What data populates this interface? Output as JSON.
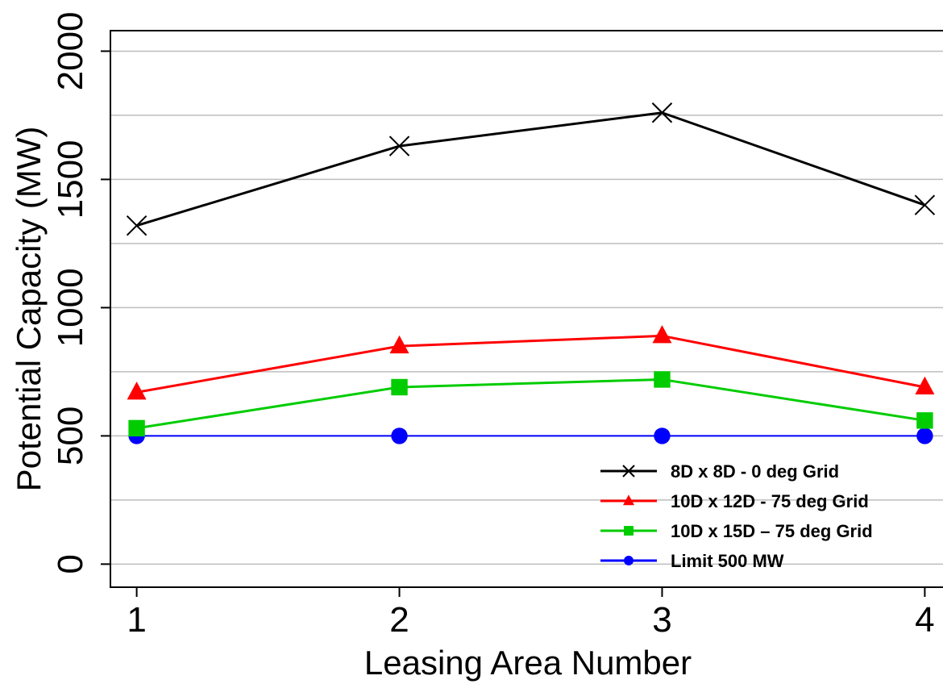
{
  "chart_data": {
    "type": "line",
    "xlabel": "Leasing Area Number",
    "ylabel": "Potential Capacity (MW)",
    "x": [
      1,
      2,
      3,
      4
    ],
    "xlim": [
      0.9,
      4.1
    ],
    "ylim": [
      -90,
      2080
    ],
    "x_ticks": [
      "1",
      "2",
      "3",
      "4"
    ],
    "y_ticks": [
      "0",
      "500",
      "1000",
      "1500",
      "2000"
    ],
    "grid": true,
    "legend_position": "bottom-right",
    "series": [
      {
        "name": "8D x 8D - 0 deg Grid",
        "values": [
          1320,
          1630,
          1760,
          1400
        ],
        "color": "#000000",
        "marker": "x"
      },
      {
        "name": "10D x 12D - 75 deg Grid",
        "values": [
          670,
          850,
          890,
          690
        ],
        "color": "#ff0000",
        "marker": "triangle"
      },
      {
        "name": "10D x 15D – 75 deg Grid",
        "values": [
          530,
          690,
          720,
          560
        ],
        "color": "#00cc00",
        "marker": "square"
      },
      {
        "name": "Limit 500 MW",
        "values": [
          500,
          500,
          500,
          500
        ],
        "color": "#0000ff",
        "marker": "circle"
      }
    ]
  }
}
